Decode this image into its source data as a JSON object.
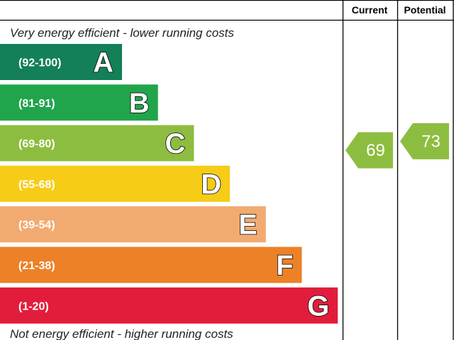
{
  "chart_data": {
    "type": "bar",
    "title": "",
    "header": {
      "current": "Current",
      "potential": "Potential"
    },
    "top_note": "Very energy efficient - lower running costs",
    "bottom_note": "Not energy efficient - higher running costs",
    "bands": [
      {
        "letter": "A",
        "range": "(92-100)",
        "min": 92,
        "max": 100,
        "color": "#138057"
      },
      {
        "letter": "B",
        "range": "(81-91)",
        "min": 81,
        "max": 91,
        "color": "#20a54c"
      },
      {
        "letter": "C",
        "range": "(69-80)",
        "min": 69,
        "max": 80,
        "color": "#8dbd40"
      },
      {
        "letter": "D",
        "range": "(55-68)",
        "min": 55,
        "max": 68,
        "color": "#f6cc17"
      },
      {
        "letter": "E",
        "range": "(39-54)",
        "min": 39,
        "max": 54,
        "color": "#f1ab70"
      },
      {
        "letter": "F",
        "range": "(21-38)",
        "min": 21,
        "max": 38,
        "color": "#ec8127"
      },
      {
        "letter": "G",
        "range": "(1-20)",
        "min": 1,
        "max": 20,
        "color": "#e21d3c"
      }
    ],
    "current": {
      "value": 69,
      "label": "69",
      "band": "C",
      "color": "#8dbd40"
    },
    "potential": {
      "value": 73,
      "label": "73",
      "band": "C",
      "color": "#8dbd40"
    }
  }
}
